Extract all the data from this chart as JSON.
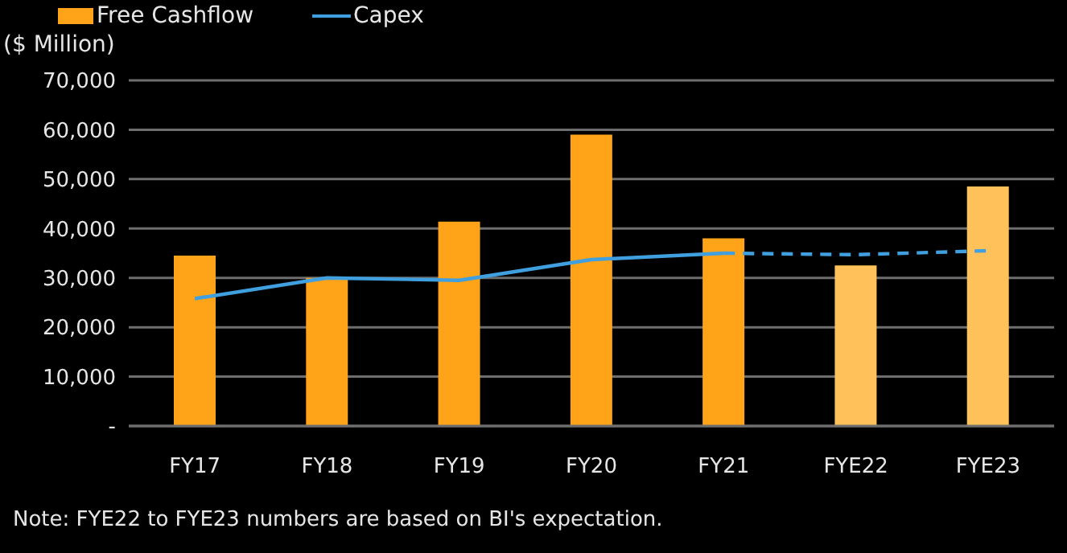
{
  "chart_data": {
    "type": "bar",
    "ylabel": "($ Million)",
    "categories": [
      "FY17",
      "FY18",
      "FY19",
      "FY20",
      "FY21",
      "FYE22",
      "FYE23"
    ],
    "series": [
      {
        "name": "Free Cashflow",
        "color": "#ffa319",
        "colors": [
          "#ffa319",
          "#ffa319",
          "#ffa319",
          "#ffa319",
          "#ffa319",
          "#ffc25a",
          "#ffc25a"
        ],
        "values": [
          34500,
          30000,
          41400,
          59000,
          38000,
          32500,
          48500
        ]
      },
      {
        "name": "Capex",
        "type": "line",
        "color": "#3f9fdf",
        "line_style": "solid",
        "values": [
          25800,
          30000,
          29500,
          33700,
          35000,
          null,
          null
        ]
      },
      {
        "type": "line",
        "color": "#3f9fdf",
        "line_style": "dashed",
        "values": [
          null,
          null,
          null,
          null,
          35000,
          34700,
          35500
        ]
      }
    ],
    "ylim": [
      0,
      70000
    ],
    "yticks": [
      {
        "value": 0,
        "label": "-"
      },
      {
        "value": 10000,
        "label": "10,000"
      },
      {
        "value": 20000,
        "label": "20,000"
      },
      {
        "value": 30000,
        "label": "30,000"
      },
      {
        "value": 40000,
        "label": "40,000"
      },
      {
        "value": 50000,
        "label": "50,000"
      },
      {
        "value": 60000,
        "label": "60,000"
      },
      {
        "value": 70000,
        "label": "70,000"
      }
    ],
    "grid": "y",
    "legend": "top left",
    "marker": "none",
    "annotations": [
      "Note: FYE22 to FYE23 numbers are based on BI's expectation."
    ]
  }
}
